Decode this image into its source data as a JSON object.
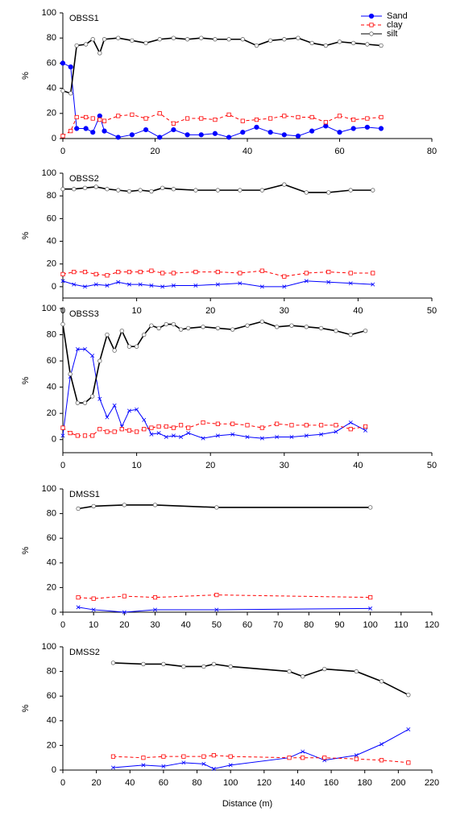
{
  "chart_data": [
    {
      "type": "line",
      "title": "OBSS1",
      "ylabel": "%",
      "legend": "upper right",
      "x": [
        0,
        1.7,
        3,
        5,
        6.5,
        8,
        9,
        12,
        15,
        18,
        21,
        24,
        27,
        30,
        33,
        36,
        39,
        42,
        45,
        48,
        51,
        54,
        57,
        60,
        63,
        66,
        69
      ],
      "xlim": [
        0,
        80
      ],
      "xticks": [
        0,
        20,
        40,
        60,
        80
      ],
      "ylim": [
        0,
        100
      ],
      "yticks": [
        0,
        20,
        40,
        60,
        80,
        100
      ],
      "series": [
        {
          "name": "Sand",
          "color": "#0000ff",
          "marker": "circle-filled",
          "dashed": false,
          "values": [
            60,
            57,
            8,
            8,
            5,
            18,
            6,
            1,
            3,
            7,
            1,
            7,
            3,
            3,
            4,
            1,
            5,
            9,
            5,
            3,
            2,
            6,
            10,
            5,
            8,
            9,
            8
          ]
        },
        {
          "name": "clay",
          "color": "#ff0000",
          "marker": "square-open",
          "dashed": true,
          "values": [
            2,
            6,
            17,
            17,
            16,
            15,
            14,
            18,
            19,
            16,
            20,
            12,
            16,
            16,
            15,
            19,
            14,
            15,
            16,
            18,
            17,
            17,
            13,
            18,
            15,
            16,
            17
          ]
        },
        {
          "name": "silt",
          "color": "#000000",
          "marker": "circle-open",
          "dashed": false,
          "values": [
            38,
            36,
            74,
            75,
            79,
            68,
            79,
            80,
            78,
            76,
            79,
            80,
            79,
            80,
            79,
            79,
            79,
            74,
            78,
            79,
            80,
            76,
            74,
            77,
            76,
            75,
            74
          ]
        }
      ]
    },
    {
      "type": "line",
      "title": "OBSS2",
      "ylabel": "%",
      "x": [
        0,
        1.5,
        3,
        4.5,
        6,
        7.5,
        9,
        10.5,
        12,
        13.5,
        15,
        18,
        21,
        24,
        27,
        30,
        33,
        36,
        39,
        42
      ],
      "xlim": [
        0,
        50
      ],
      "xticks": [
        0,
        10,
        20,
        30,
        40,
        50
      ],
      "ylim": [
        -10,
        100
      ],
      "yticks": [
        0,
        20,
        40,
        60,
        80,
        100
      ],
      "series": [
        {
          "color": "#0000ff",
          "marker": "x",
          "dashed": false,
          "values": [
            5,
            2,
            0,
            2,
            1,
            4,
            2,
            2,
            1,
            0,
            1,
            1,
            2,
            3,
            0,
            0,
            5,
            4,
            3,
            2
          ]
        },
        {
          "color": "#ff0000",
          "marker": "square-open",
          "dashed": true,
          "values": [
            11,
            13,
            13,
            11,
            10,
            13,
            13,
            13,
            14,
            12,
            12,
            13,
            13,
            12,
            14,
            9,
            12,
            13,
            12,
            12
          ]
        },
        {
          "color": "#000000",
          "marker": "circle-open",
          "dashed": false,
          "values": [
            86,
            86,
            87,
            88,
            86,
            85,
            84,
            85,
            84,
            87,
            86,
            85,
            85,
            85,
            85,
            90,
            83,
            83,
            85,
            85
          ]
        }
      ]
    },
    {
      "type": "line",
      "title": "OBSS3",
      "ylabel": "%",
      "x": [
        0,
        1,
        2,
        3,
        4,
        5,
        6,
        7,
        8,
        9,
        10,
        11,
        12,
        13,
        14,
        15,
        16,
        17,
        19,
        21,
        23,
        25,
        27,
        29,
        31,
        33,
        35,
        37,
        39,
        41
      ],
      "xlim": [
        0,
        50
      ],
      "xticks": [
        0,
        10,
        20,
        30,
        40,
        50
      ],
      "ylim": [
        -10,
        100
      ],
      "yticks": [
        0,
        20,
        40,
        60,
        80,
        100
      ],
      "series": [
        {
          "color": "#0000ff",
          "marker": "x",
          "dashed": false,
          "values": [
            3,
            48,
            69,
            69,
            64,
            31,
            17,
            26,
            10,
            22,
            23,
            15,
            4,
            5,
            2,
            3,
            2,
            5,
            1,
            3,
            4,
            2,
            1,
            2,
            2,
            3,
            4,
            6,
            13,
            7
          ]
        },
        {
          "color": "#ff0000",
          "marker": "square-open",
          "dashed": true,
          "values": [
            9,
            5,
            3,
            3,
            3,
            8,
            6,
            6,
            8,
            7,
            6,
            8,
            9,
            10,
            10,
            9,
            11,
            9,
            13,
            12,
            12,
            11,
            9,
            12,
            11,
            11,
            11,
            11,
            8,
            10
          ]
        },
        {
          "color": "#000000",
          "marker": "circle-open",
          "dashed": false,
          "values": [
            88,
            50,
            28,
            28,
            33,
            60,
            80,
            68,
            83,
            71,
            71,
            80,
            87,
            85,
            88,
            88,
            84,
            85,
            86,
            85,
            84,
            87,
            90,
            86,
            87,
            86,
            85,
            83,
            80,
            83
          ]
        }
      ]
    },
    {
      "type": "line",
      "title": "DMSS1",
      "ylabel": "%",
      "x": [
        5,
        10,
        20,
        30,
        50,
        100
      ],
      "xlim": [
        0,
        120
      ],
      "xticks": [
        0,
        10,
        20,
        30,
        40,
        50,
        60,
        70,
        80,
        90,
        100,
        110,
        120
      ],
      "ylim": [
        0,
        100
      ],
      "yticks": [
        0,
        20,
        40,
        60,
        80,
        100
      ],
      "series": [
        {
          "color": "#0000ff",
          "marker": "x",
          "dashed": false,
          "values": [
            4,
            2,
            0,
            2,
            2,
            3
          ]
        },
        {
          "color": "#ff0000",
          "marker": "square-open",
          "dashed": true,
          "values": [
            12,
            11,
            13,
            12,
            14,
            12
          ]
        },
        {
          "color": "#000000",
          "marker": "circle-open",
          "dashed": false,
          "values": [
            84,
            86,
            87,
            87,
            85,
            85
          ]
        }
      ]
    },
    {
      "type": "line",
      "title": "DMSS2",
      "ylabel": "%",
      "xlabel": "Distance (m)",
      "x": [
        30,
        48,
        60,
        72,
        84,
        90,
        100,
        135,
        143,
        156,
        175,
        190,
        206
      ],
      "xlim": [
        0,
        220
      ],
      "xticks": [
        0,
        20,
        40,
        60,
        80,
        100,
        120,
        140,
        160,
        180,
        200,
        220
      ],
      "ylim": [
        0,
        100
      ],
      "yticks": [
        0,
        20,
        40,
        60,
        80,
        100
      ],
      "series": [
        {
          "color": "#0000ff",
          "marker": "x",
          "dashed": false,
          "values": [
            2,
            4,
            3,
            6,
            5,
            1,
            4,
            10,
            15,
            8,
            12,
            21,
            33
          ]
        },
        {
          "color": "#ff0000",
          "marker": "square-open",
          "dashed": true,
          "values": [
            11,
            10,
            11,
            11,
            11,
            12,
            11,
            10,
            10,
            10,
            9,
            8,
            6
          ]
        },
        {
          "color": "#000000",
          "marker": "circle-open",
          "dashed": false,
          "values": [
            87,
            86,
            86,
            84,
            84,
            86,
            84,
            80,
            76,
            82,
            80,
            72,
            61
          ]
        }
      ]
    }
  ]
}
